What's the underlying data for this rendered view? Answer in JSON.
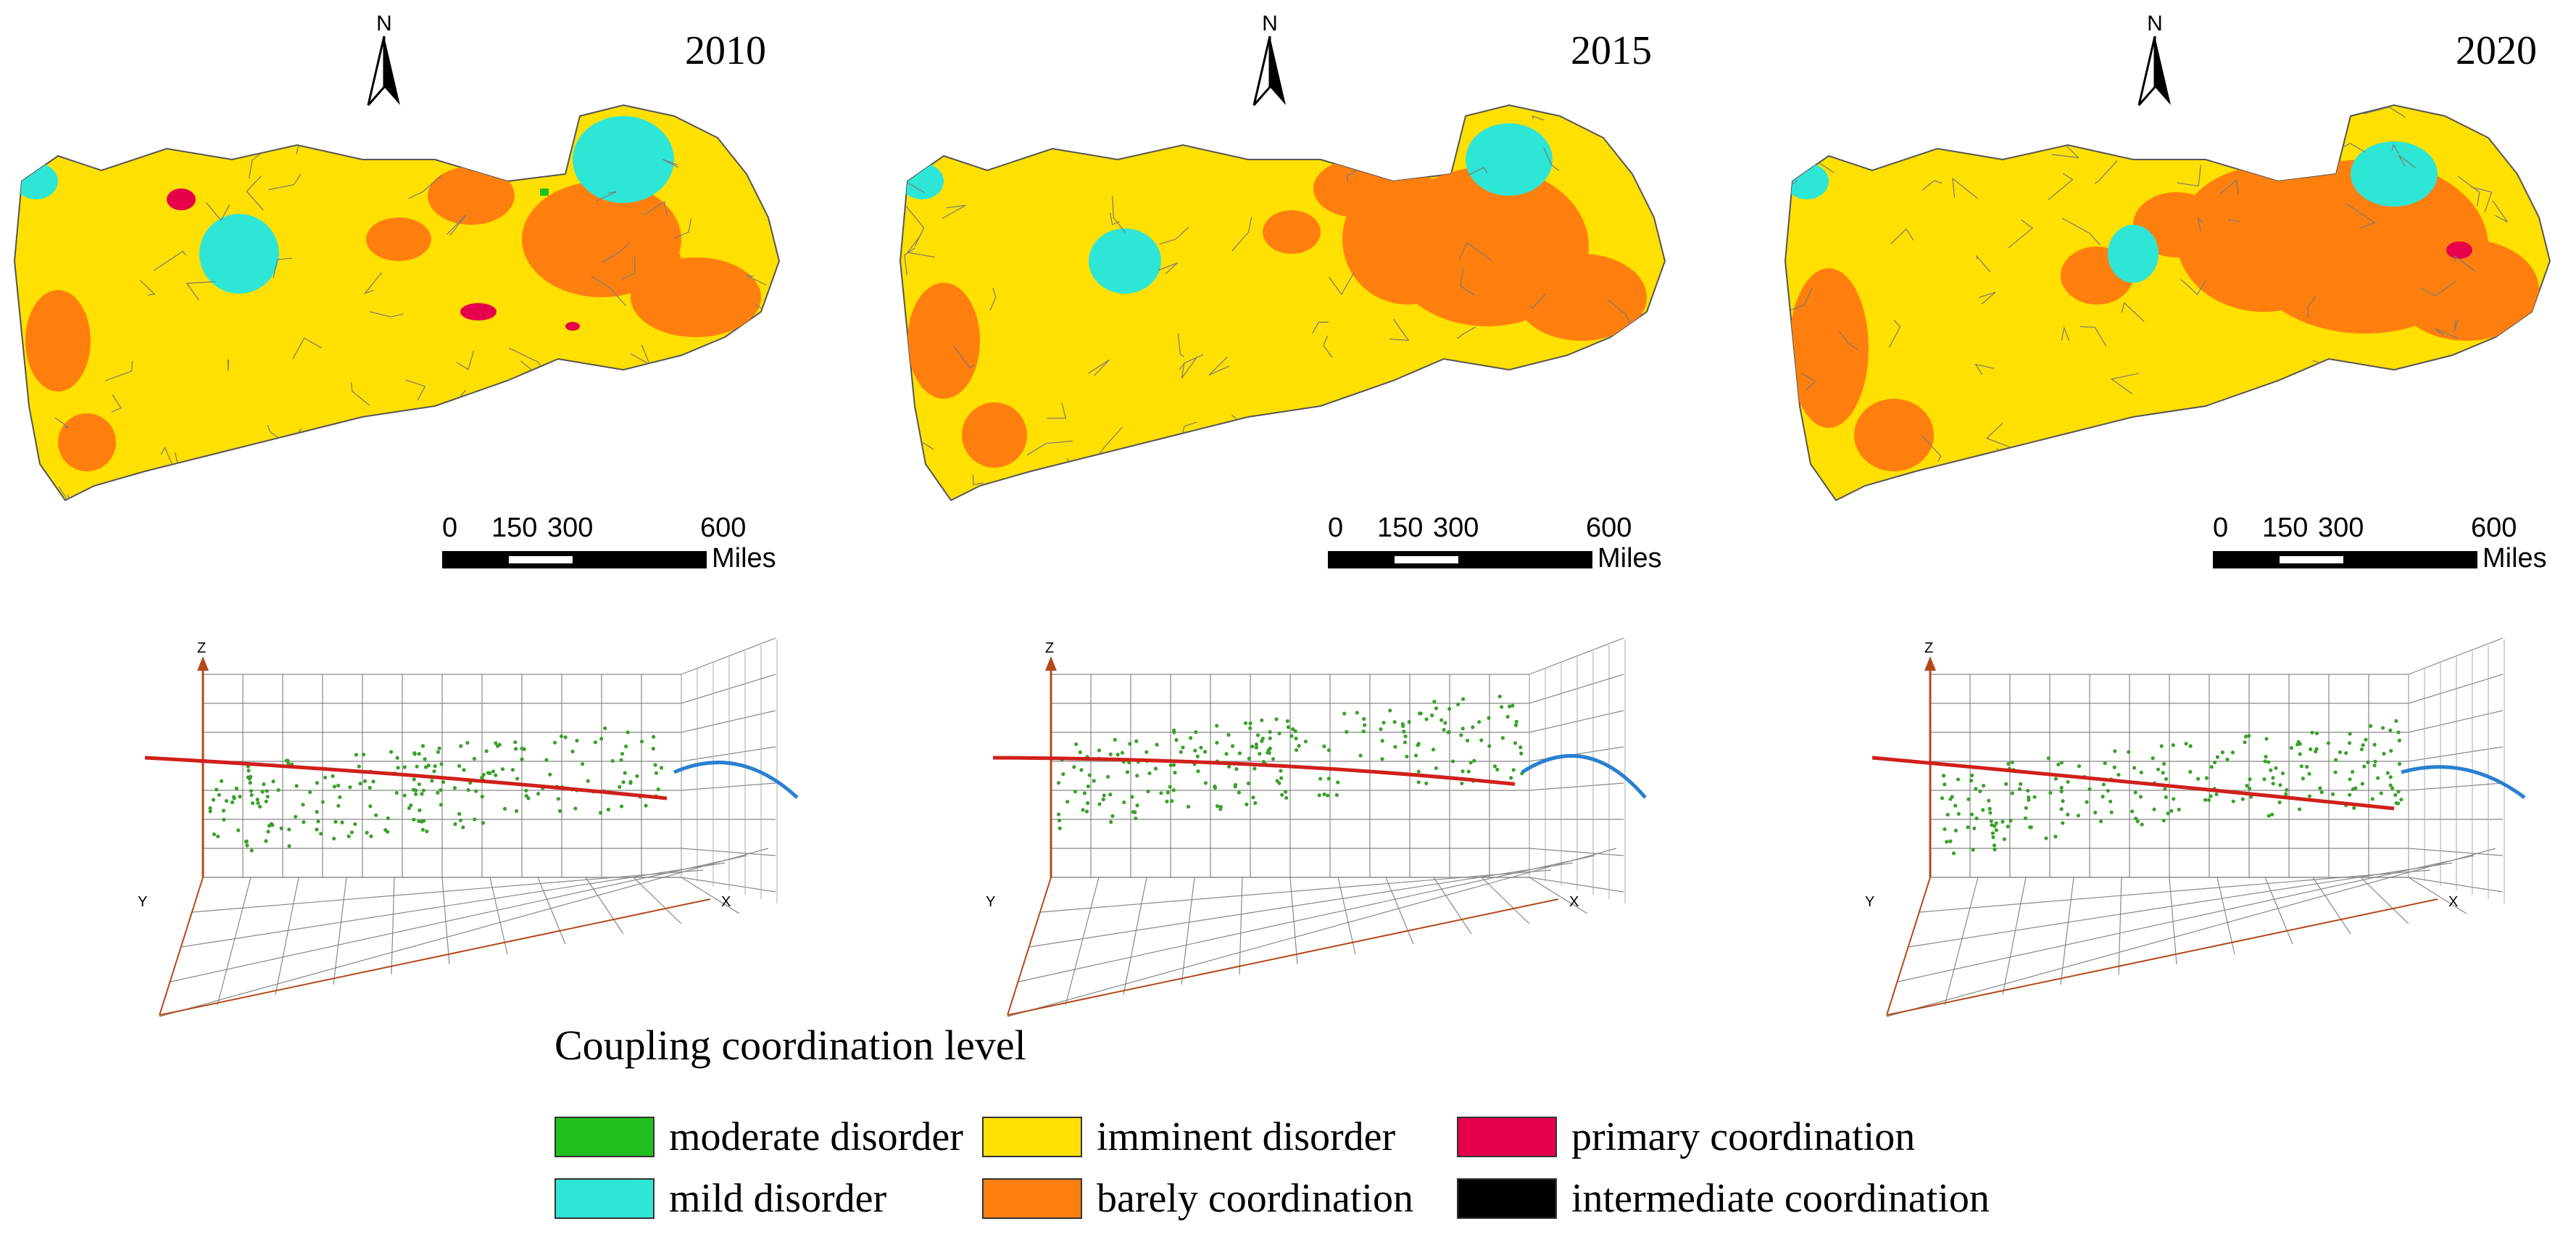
{
  "figure": {
    "panels": [
      {
        "year": "2010",
        "north_label": "N",
        "scale_ticks": [
          "0",
          "150",
          "300",
          "600"
        ],
        "scale_unit": "Miles",
        "axis_labels": {
          "z": "Z",
          "y": "Y",
          "x": "X"
        },
        "trend_peak": 0.55,
        "cloud_level": 0.32
      },
      {
        "year": "2015",
        "north_label": "N",
        "scale_ticks": [
          "0",
          "150",
          "300",
          "600"
        ],
        "scale_unit": "Miles",
        "axis_labels": {
          "z": "Z",
          "y": "Y",
          "x": "X"
        },
        "trend_peak": 0.62,
        "cloud_level": 0.45
      },
      {
        "year": "2020",
        "north_label": "N",
        "scale_ticks": [
          "0",
          "150",
          "300",
          "600"
        ],
        "scale_unit": "Miles",
        "axis_labels": {
          "z": "Z",
          "y": "Y",
          "x": "X"
        },
        "trend_peak": 0.5,
        "cloud_level": 0.32
      }
    ]
  },
  "legend": {
    "title": "Coupling coordination level",
    "items": [
      {
        "label": "moderate disorder",
        "color": "#1fc01f"
      },
      {
        "label": "mild disorder",
        "color": "#2ee6d6"
      },
      {
        "label": "imminent disorder",
        "color": "#ffe000"
      },
      {
        "label": "barely coordination",
        "color": "#ff7f0e"
      },
      {
        "label": "primary coordination",
        "color": "#e6004c"
      },
      {
        "label": "intermediate coordination",
        "color": "#000000"
      }
    ]
  }
}
